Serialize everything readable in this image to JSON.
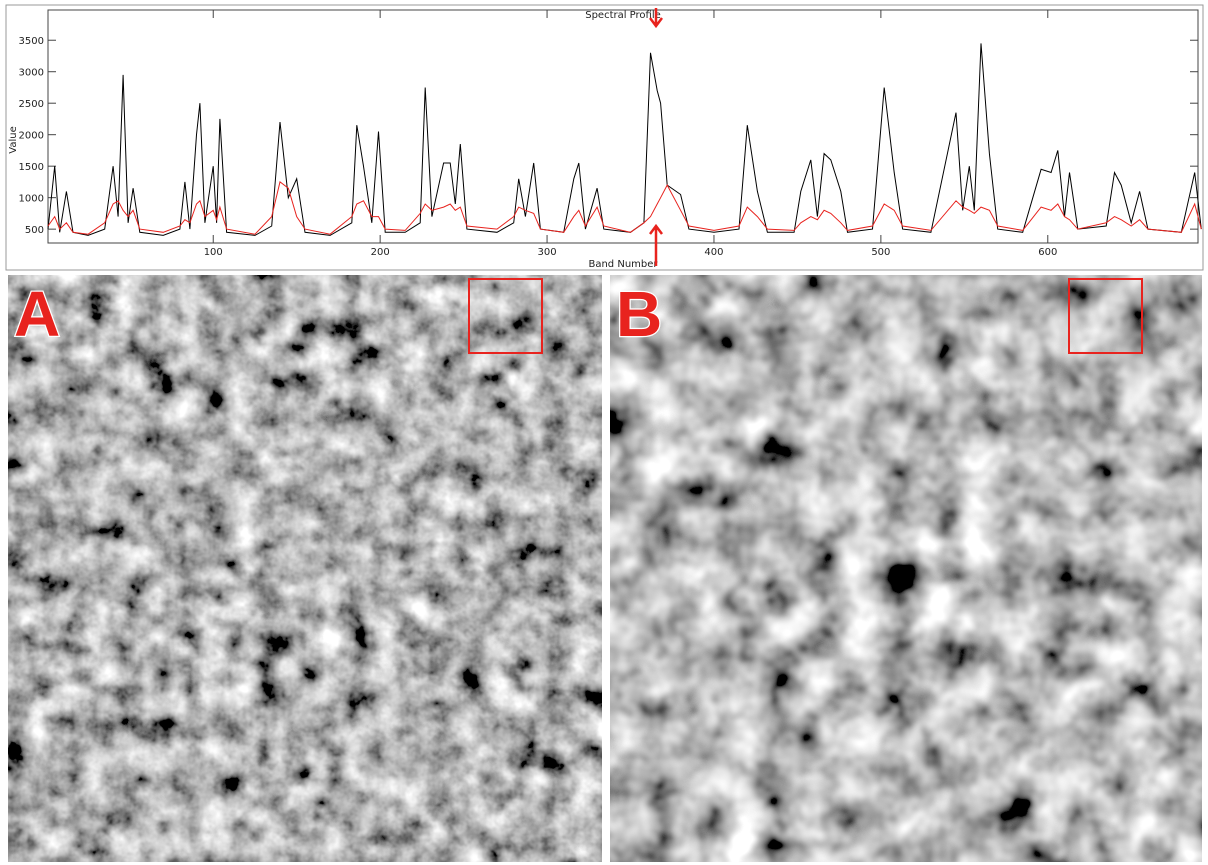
{
  "chart_data": {
    "type": "line",
    "title": "Spectral Profile",
    "xlabel": "Band Number",
    "ylabel": "Value",
    "x": [
      1,
      5,
      8,
      12,
      16,
      25,
      35,
      40,
      43,
      46,
      49,
      52,
      56,
      70,
      80,
      83,
      86,
      90,
      92,
      95,
      100,
      102,
      104,
      108,
      125,
      135,
      140,
      145,
      150,
      155,
      170,
      183,
      186,
      190,
      195,
      199,
      203,
      215,
      224,
      227,
      231,
      238,
      242,
      245,
      248,
      252,
      270,
      280,
      283,
      287,
      292,
      296,
      310,
      316,
      319,
      323,
      330,
      334,
      350,
      358,
      362,
      366,
      368,
      372,
      380,
      385,
      400,
      415,
      420,
      426,
      432,
      448,
      452,
      458,
      462,
      466,
      470,
      476,
      480,
      495,
      502,
      508,
      513,
      530,
      545,
      549,
      553,
      556,
      560,
      565,
      570,
      585,
      596,
      602,
      606,
      610,
      613,
      618,
      635,
      640,
      644,
      650,
      655,
      660,
      680,
      688,
      692
    ],
    "series": [
      {
        "color": "#000000",
        "values": [
          500,
          1500,
          450,
          1100,
          450,
          400,
          500,
          1500,
          700,
          2950,
          600,
          1150,
          450,
          400,
          500,
          1250,
          500,
          2000,
          2500,
          600,
          1500,
          600,
          2250,
          450,
          400,
          550,
          2200,
          1000,
          1300,
          450,
          400,
          600,
          2150,
          1500,
          600,
          2050,
          450,
          450,
          600,
          2750,
          700,
          1550,
          1550,
          900,
          1850,
          500,
          450,
          600,
          1300,
          700,
          1550,
          500,
          450,
          1300,
          1550,
          500,
          1150,
          500,
          450,
          600,
          3300,
          2700,
          2500,
          1200,
          1050,
          500,
          450,
          500,
          2150,
          1100,
          450,
          450,
          1100,
          1600,
          700,
          1700,
          1600,
          1100,
          450,
          500,
          2750,
          1400,
          500,
          450,
          2350,
          800,
          1500,
          800,
          3450,
          1700,
          500,
          450,
          1450,
          1400,
          1750,
          700,
          1400,
          500,
          550,
          1400,
          1200,
          600,
          1100,
          500,
          450,
          1400,
          500
        ]
      },
      {
        "color": "#e8231e",
        "values": [
          550,
          700,
          500,
          600,
          450,
          420,
          600,
          900,
          950,
          800,
          700,
          800,
          500,
          450,
          550,
          650,
          600,
          900,
          950,
          700,
          800,
          650,
          850,
          500,
          420,
          700,
          1250,
          1150,
          700,
          500,
          420,
          700,
          900,
          950,
          700,
          700,
          500,
          480,
          750,
          900,
          800,
          850,
          900,
          800,
          850,
          550,
          500,
          700,
          850,
          800,
          750,
          500,
          450,
          700,
          800,
          550,
          850,
          550,
          450,
          600,
          700,
          900,
          1000,
          1200,
          800,
          550,
          480,
          550,
          850,
          700,
          500,
          480,
          600,
          700,
          650,
          800,
          750,
          600,
          480,
          550,
          900,
          800,
          550,
          480,
          950,
          850,
          800,
          750,
          850,
          800,
          550,
          480,
          850,
          800,
          900,
          700,
          650,
          500,
          600,
          700,
          650,
          550,
          650,
          500,
          450,
          900,
          500
        ]
      }
    ],
    "xlim": [
      1,
      690
    ],
    "ylim": [
      280,
      3980
    ],
    "xticks": [
      100,
      200,
      300,
      400,
      500,
      600
    ],
    "yticks": [
      500,
      1000,
      1500,
      2000,
      2500,
      3000,
      3500
    ],
    "grid": false
  },
  "panels": {
    "labels": [
      "A",
      "B"
    ]
  }
}
